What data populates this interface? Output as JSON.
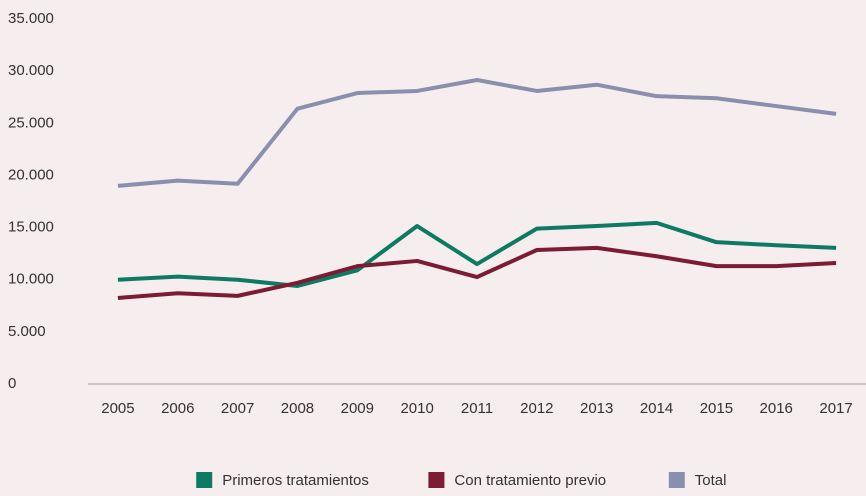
{
  "chart_data": {
    "type": "line",
    "categories": [
      "2005",
      "2006",
      "2007",
      "2008",
      "2009",
      "2010",
      "2011",
      "2012",
      "2013",
      "2014",
      "2015",
      "2016",
      "2017"
    ],
    "series": [
      {
        "name": "Primeros tratamientos",
        "color": "#0e7a62",
        "values": [
          10000,
          10300,
          10000,
          9400,
          10900,
          15150,
          11500,
          14900,
          15150,
          15450,
          13600,
          13300,
          13050
        ]
      },
      {
        "name": "Con tratamiento previo",
        "color": "#7d1b35",
        "values": [
          8250,
          8700,
          8450,
          9700,
          11300,
          11800,
          10250,
          12850,
          13050,
          12250,
          11300,
          11300,
          11600
        ]
      },
      {
        "name": "Total",
        "color": "#8a8fad",
        "values": [
          19000,
          19500,
          19200,
          26400,
          27900,
          28100,
          29150,
          28100,
          28700,
          27600,
          27400,
          26650,
          25900
        ]
      }
    ],
    "ylim": [
      0,
      35000
    ],
    "yticks": [
      0,
      {
        "value": 5000,
        "label": "5.000"
      },
      {
        "value": 10000,
        "label": "10.000"
      },
      {
        "value": 15000,
        "label": "15.000"
      },
      {
        "value": 20000,
        "label": "20.000"
      },
      {
        "value": 25000,
        "label": "25.000"
      },
      {
        "value": 30000,
        "label": "30.000"
      },
      {
        "value": 35000,
        "label": "35.000"
      }
    ],
    "grid": false,
    "legend": "bottom"
  }
}
